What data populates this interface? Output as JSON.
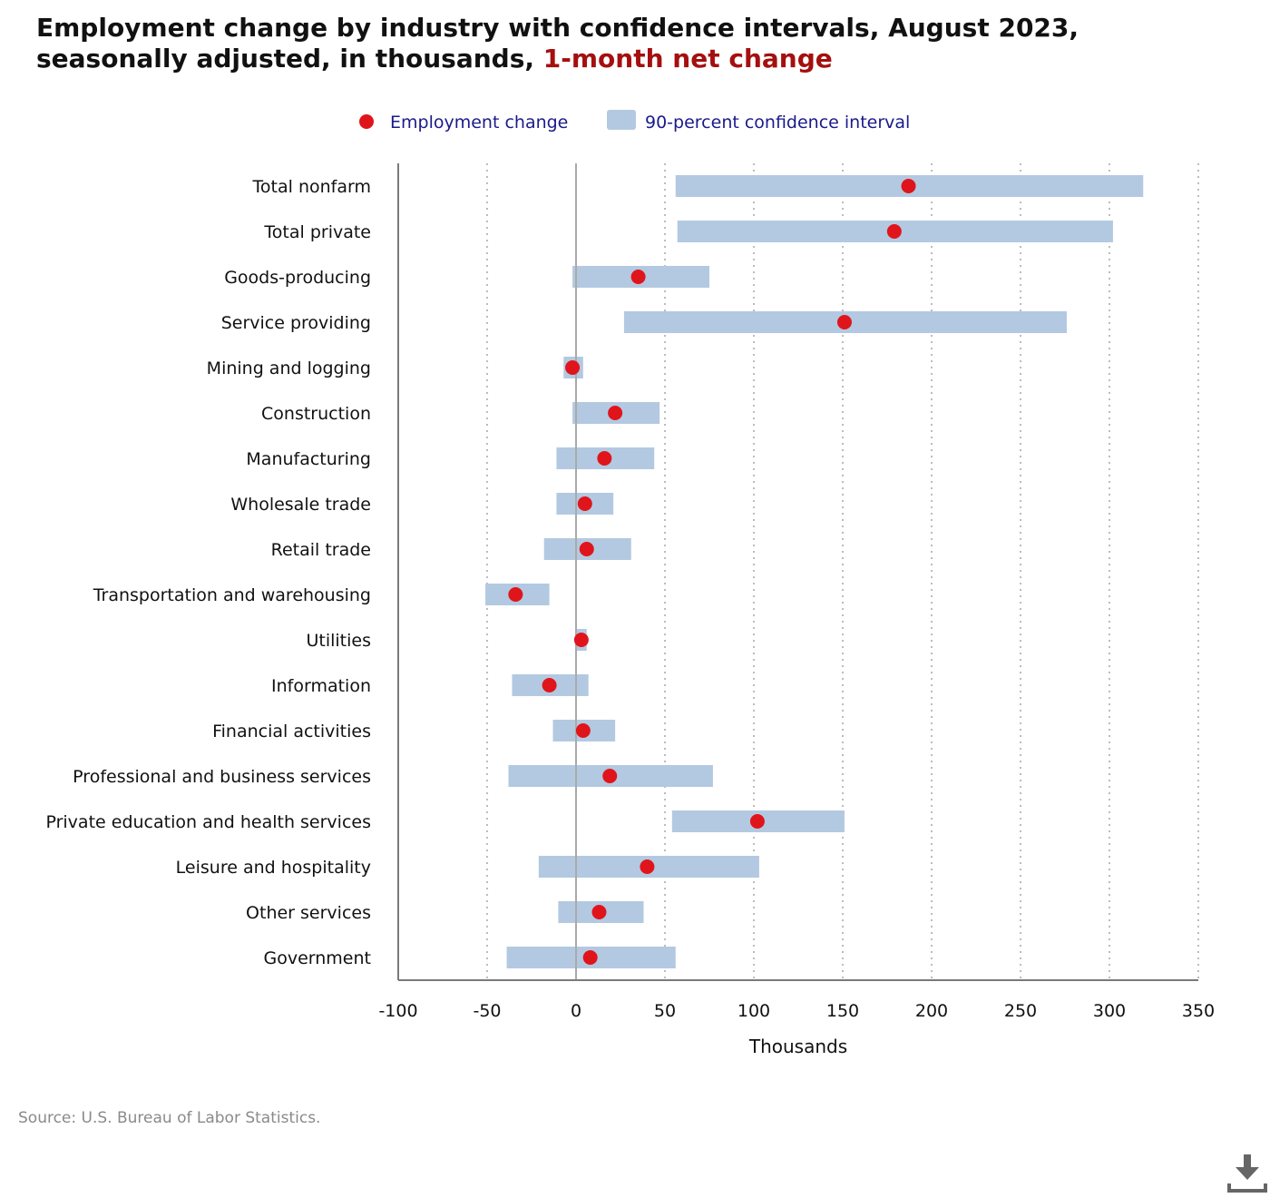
{
  "title": {
    "main": "Employment change by industry with confidence intervals, August 2023, seasonally adjusted, in thousands, ",
    "highlight": "1-month net change"
  },
  "source": "Source: U.S. Bureau of Labor Statistics.",
  "icons": {
    "download": "download-icon"
  },
  "colors": {
    "point": "#e0151b",
    "interval": "#b3c9e1",
    "legend_text": "#1a1a8c",
    "highlight": "#a50f0f"
  },
  "chart_data": {
    "type": "dot-interval",
    "xlabel": "Thousands",
    "xlim": [
      -100,
      350
    ],
    "xticks": [
      -100,
      -50,
      0,
      50,
      100,
      150,
      200,
      250,
      300,
      350
    ],
    "grid": "vertical dotted",
    "legend": {
      "placement": "top-center",
      "items": [
        "Employment change",
        "90-percent confidence interval"
      ]
    },
    "categories": [
      "Total nonfarm",
      "Total private",
      "Goods-producing",
      "Service providing",
      "Mining and logging",
      "Construction",
      "Manufacturing",
      "Wholesale trade",
      "Retail trade",
      "Transportation and warehousing",
      "Utilities",
      "Information",
      "Financial activities",
      "Professional and business services",
      "Private education and health services",
      "Leisure and hospitality",
      "Other services",
      "Government"
    ],
    "series": [
      {
        "name": "Employment change",
        "values": [
          187,
          179,
          35,
          151,
          -2,
          22,
          16,
          5,
          6,
          -34,
          3,
          -15,
          4,
          19,
          102,
          40,
          13,
          8
        ]
      },
      {
        "name": "90-percent confidence interval",
        "low": [
          56,
          57,
          -2,
          27,
          -7,
          -2,
          -11,
          -11,
          -18,
          -51,
          0,
          -36,
          -13,
          -38,
          54,
          -21,
          -10,
          -39
        ],
        "high": [
          319,
          302,
          75,
          276,
          4,
          47,
          44,
          21,
          31,
          -15,
          6,
          7,
          22,
          77,
          151,
          103,
          38,
          56
        ]
      }
    ]
  }
}
